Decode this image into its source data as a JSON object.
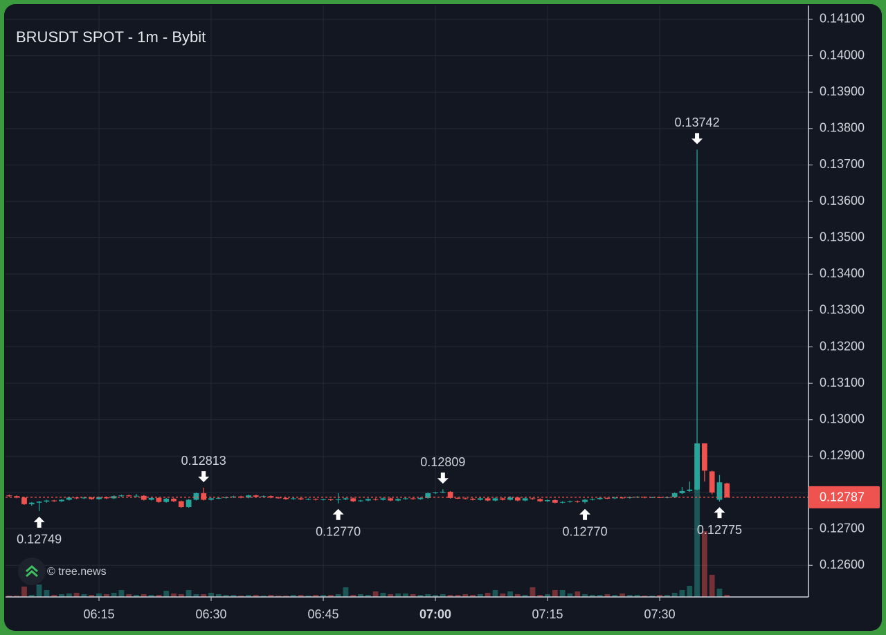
{
  "chart_data": {
    "type": "candlestick",
    "title": "BRUSDT SPOT - 1m - Bybit",
    "watermark": "© tree.news",
    "up_color": "#26a69a",
    "down_color": "#ef5350",
    "grid": true,
    "xlim": [
      362.5,
      469.9
    ],
    "ylim": [
      0.12513,
      0.14138
    ],
    "vlim": [
      0,
      855
    ],
    "xticks": [
      {
        "value": 375,
        "label": "06:15"
      },
      {
        "value": 390,
        "label": "06:30"
      },
      {
        "value": 405,
        "label": "06:45"
      },
      {
        "value": 420,
        "label": "07:00",
        "bold": true
      },
      {
        "value": 435,
        "label": "07:15"
      },
      {
        "value": 450,
        "label": "07:30"
      }
    ],
    "yticks": [
      {
        "value": 0.126,
        "label": "0.12600"
      },
      {
        "value": 0.127,
        "label": "0.12700"
      },
      {
        "value": 0.128,
        "label": "0.12800"
      },
      {
        "value": 0.129,
        "label": "0.12900"
      },
      {
        "value": 0.13,
        "label": "0.13000"
      },
      {
        "value": 0.131,
        "label": "0.13100"
      },
      {
        "value": 0.132,
        "label": "0.13200"
      },
      {
        "value": 0.133,
        "label": "0.13300"
      },
      {
        "value": 0.134,
        "label": "0.13400"
      },
      {
        "value": 0.135,
        "label": "0.13500"
      },
      {
        "value": 0.136,
        "label": "0.13600"
      },
      {
        "value": 0.137,
        "label": "0.13700"
      },
      {
        "value": 0.138,
        "label": "0.13800"
      },
      {
        "value": 0.139,
        "label": "0.13900"
      },
      {
        "value": 0.14,
        "label": "0.14000"
      },
      {
        "value": 0.141,
        "label": "0.14100"
      }
    ],
    "last_price": {
      "value": 0.12787,
      "label": "0.12787"
    },
    "annotations": [
      {
        "x": 367,
        "value": 0.12749,
        "label": "0.12749"
      },
      {
        "x": 389,
        "value": 0.12813,
        "label": "0.12813"
      },
      {
        "x": 407,
        "value": 0.1277,
        "label": "0.12770"
      },
      {
        "x": 421,
        "value": 0.12809,
        "label": "0.12809"
      },
      {
        "x": 440,
        "value": 0.1277,
        "label": "0.12770"
      },
      {
        "x": 455,
        "value": 0.13742,
        "label": "0.13742"
      },
      {
        "x": 458,
        "value": 0.12775,
        "label": "0.12775"
      }
    ],
    "x": [
      363,
      364,
      365,
      366,
      367,
      368,
      369,
      370,
      371,
      372,
      373,
      374,
      375,
      376,
      377,
      378,
      379,
      380,
      381,
      382,
      383,
      384,
      385,
      386,
      387,
      388,
      389,
      390,
      391,
      392,
      393,
      394,
      395,
      396,
      397,
      398,
      399,
      400,
      401,
      402,
      403,
      404,
      405,
      406,
      407,
      408,
      409,
      410,
      411,
      412,
      413,
      414,
      415,
      416,
      417,
      418,
      419,
      420,
      421,
      422,
      423,
      424,
      425,
      426,
      427,
      428,
      429,
      430,
      431,
      432,
      433,
      434,
      435,
      436,
      437,
      438,
      439,
      440,
      441,
      442,
      443,
      444,
      445,
      446,
      447,
      448,
      449,
      450,
      451,
      452,
      453,
      454,
      455,
      456,
      457,
      458,
      459
    ],
    "open": [
      0.12792,
      0.1279,
      0.12786,
      0.12768,
      0.12772,
      0.12775,
      0.12778,
      0.12776,
      0.1278,
      0.12786,
      0.12784,
      0.12786,
      0.12782,
      0.12787,
      0.12784,
      0.1279,
      0.12792,
      0.1279,
      0.12791,
      0.1278,
      0.12785,
      0.12774,
      0.12783,
      0.12776,
      0.1276,
      0.1278,
      0.12798,
      0.1278,
      0.12784,
      0.12785,
      0.12787,
      0.12789,
      0.12786,
      0.12792,
      0.12788,
      0.1279,
      0.12786,
      0.12785,
      0.12782,
      0.12784,
      0.12781,
      0.12782,
      0.1278,
      0.12781,
      0.12779,
      0.12781,
      0.12784,
      0.12776,
      0.12778,
      0.12782,
      0.1278,
      0.12784,
      0.12778,
      0.12782,
      0.12784,
      0.12782,
      0.12785,
      0.12798,
      0.128,
      0.12802,
      0.12785,
      0.12784,
      0.12783,
      0.1278,
      0.12784,
      0.12778,
      0.12784,
      0.1278,
      0.12786,
      0.12778,
      0.12784,
      0.12782,
      0.12776,
      0.12779,
      0.12772,
      0.12774,
      0.12776,
      0.12774,
      0.1278,
      0.12782,
      0.12785,
      0.12784,
      0.12786,
      0.12785,
      0.12787,
      0.12788,
      0.12786,
      0.12787,
      0.12786,
      0.12787,
      0.12798,
      0.12804,
      0.12808,
      0.12935,
      0.12858,
      0.1278,
      0.12825
    ],
    "high": [
      0.12794,
      0.12792,
      0.12788,
      0.12774,
      0.12777,
      0.1278,
      0.1278,
      0.12782,
      0.12788,
      0.12788,
      0.12788,
      0.12788,
      0.12789,
      0.12789,
      0.12792,
      0.12794,
      0.12794,
      0.12796,
      0.12793,
      0.12787,
      0.12787,
      0.12785,
      0.12785,
      0.12778,
      0.12782,
      0.128,
      0.12813,
      0.12786,
      0.12787,
      0.12789,
      0.12791,
      0.12791,
      0.12794,
      0.12794,
      0.12792,
      0.12792,
      0.12788,
      0.12787,
      0.12786,
      0.12786,
      0.12784,
      0.12784,
      0.12783,
      0.12783,
      0.12798,
      0.12786,
      0.12786,
      0.1278,
      0.12784,
      0.12784,
      0.12786,
      0.12786,
      0.12784,
      0.12786,
      0.12786,
      0.12787,
      0.128,
      0.12802,
      0.12809,
      0.12804,
      0.12787,
      0.12786,
      0.12785,
      0.12786,
      0.12786,
      0.12786,
      0.12786,
      0.1279,
      0.12788,
      0.12786,
      0.12786,
      0.12784,
      0.12781,
      0.12781,
      0.12776,
      0.12778,
      0.12778,
      0.12782,
      0.12784,
      0.12787,
      0.12786,
      0.12788,
      0.12787,
      0.12789,
      0.1279,
      0.12789,
      0.12788,
      0.12788,
      0.12789,
      0.128,
      0.12815,
      0.1283,
      0.13742,
      0.12935,
      0.1286,
      0.12848,
      0.12827
    ],
    "low": [
      0.12788,
      0.12784,
      0.12766,
      0.12764,
      0.12749,
      0.12772,
      0.12774,
      0.12774,
      0.12778,
      0.12782,
      0.12782,
      0.1278,
      0.1278,
      0.12782,
      0.12782,
      0.12788,
      0.12788,
      0.12788,
      0.12778,
      0.12778,
      0.12772,
      0.12772,
      0.12774,
      0.12758,
      0.12758,
      0.12778,
      0.12778,
      0.12778,
      0.12782,
      0.12783,
      0.12785,
      0.12784,
      0.12784,
      0.12786,
      0.12786,
      0.12784,
      0.12783,
      0.1278,
      0.1278,
      0.12779,
      0.12779,
      0.12778,
      0.12778,
      0.12777,
      0.1277,
      0.12779,
      0.12774,
      0.12774,
      0.12776,
      0.12778,
      0.12778,
      0.12776,
      0.12776,
      0.1278,
      0.1278,
      0.1278,
      0.12783,
      0.12796,
      0.12798,
      0.12783,
      0.12782,
      0.12781,
      0.12778,
      0.12778,
      0.12776,
      0.12776,
      0.12778,
      0.12778,
      0.12776,
      0.12776,
      0.1278,
      0.12774,
      0.12774,
      0.1277,
      0.1277,
      0.12772,
      0.12772,
      0.1277,
      0.12778,
      0.1278,
      0.12782,
      0.12782,
      0.12783,
      0.12783,
      0.12785,
      0.12784,
      0.12785,
      0.12785,
      0.12784,
      0.12785,
      0.12796,
      0.12802,
      0.12806,
      0.1283,
      0.12795,
      0.12775,
      0.12785
    ],
    "close": [
      0.1279,
      0.12786,
      0.12768,
      0.12772,
      0.12775,
      0.12778,
      0.12776,
      0.1278,
      0.12786,
      0.12784,
      0.12786,
      0.12782,
      0.12787,
      0.12784,
      0.1279,
      0.12792,
      0.1279,
      0.12791,
      0.1278,
      0.12785,
      0.12774,
      0.12783,
      0.12776,
      0.1276,
      0.1278,
      0.12798,
      0.1278,
      0.12784,
      0.12785,
      0.12787,
      0.12789,
      0.12786,
      0.12792,
      0.12788,
      0.1279,
      0.12786,
      0.12785,
      0.12782,
      0.12784,
      0.12781,
      0.12782,
      0.1278,
      0.12781,
      0.12779,
      0.12781,
      0.12784,
      0.12776,
      0.12778,
      0.12782,
      0.1278,
      0.12784,
      0.12778,
      0.12782,
      0.12784,
      0.12782,
      0.12785,
      0.12798,
      0.128,
      0.12802,
      0.12785,
      0.12784,
      0.12783,
      0.1278,
      0.12784,
      0.12778,
      0.12784,
      0.1278,
      0.12786,
      0.12778,
      0.12784,
      0.12782,
      0.12776,
      0.12779,
      0.12772,
      0.12774,
      0.12776,
      0.12774,
      0.1278,
      0.12782,
      0.12785,
      0.12784,
      0.12786,
      0.12785,
      0.12787,
      0.12788,
      0.12786,
      0.12787,
      0.12786,
      0.12787,
      0.12798,
      0.12804,
      0.12808,
      0.12935,
      0.1286,
      0.128,
      0.12828,
      0.12787
    ],
    "volume": [
      2,
      2,
      15,
      3,
      18,
      10,
      3,
      4,
      5,
      6,
      4,
      3,
      5,
      4,
      6,
      10,
      4,
      3,
      4,
      3,
      3,
      9,
      5,
      4,
      10,
      4,
      4,
      6,
      4,
      3,
      3,
      2,
      3,
      3,
      2,
      3,
      2,
      2,
      3,
      3,
      2,
      3,
      3,
      3,
      4,
      14,
      3,
      4,
      3,
      8,
      6,
      4,
      5,
      5,
      4,
      3,
      4,
      3,
      4,
      3,
      3,
      4,
      3,
      4,
      6,
      10,
      5,
      8,
      4,
      3,
      14,
      3,
      4,
      10,
      10,
      5,
      8,
      4,
      3,
      3,
      4,
      3,
      5,
      3,
      3,
      2,
      2,
      3,
      3,
      6,
      10,
      16,
      160,
      95,
      32,
      12,
      3
    ]
  }
}
